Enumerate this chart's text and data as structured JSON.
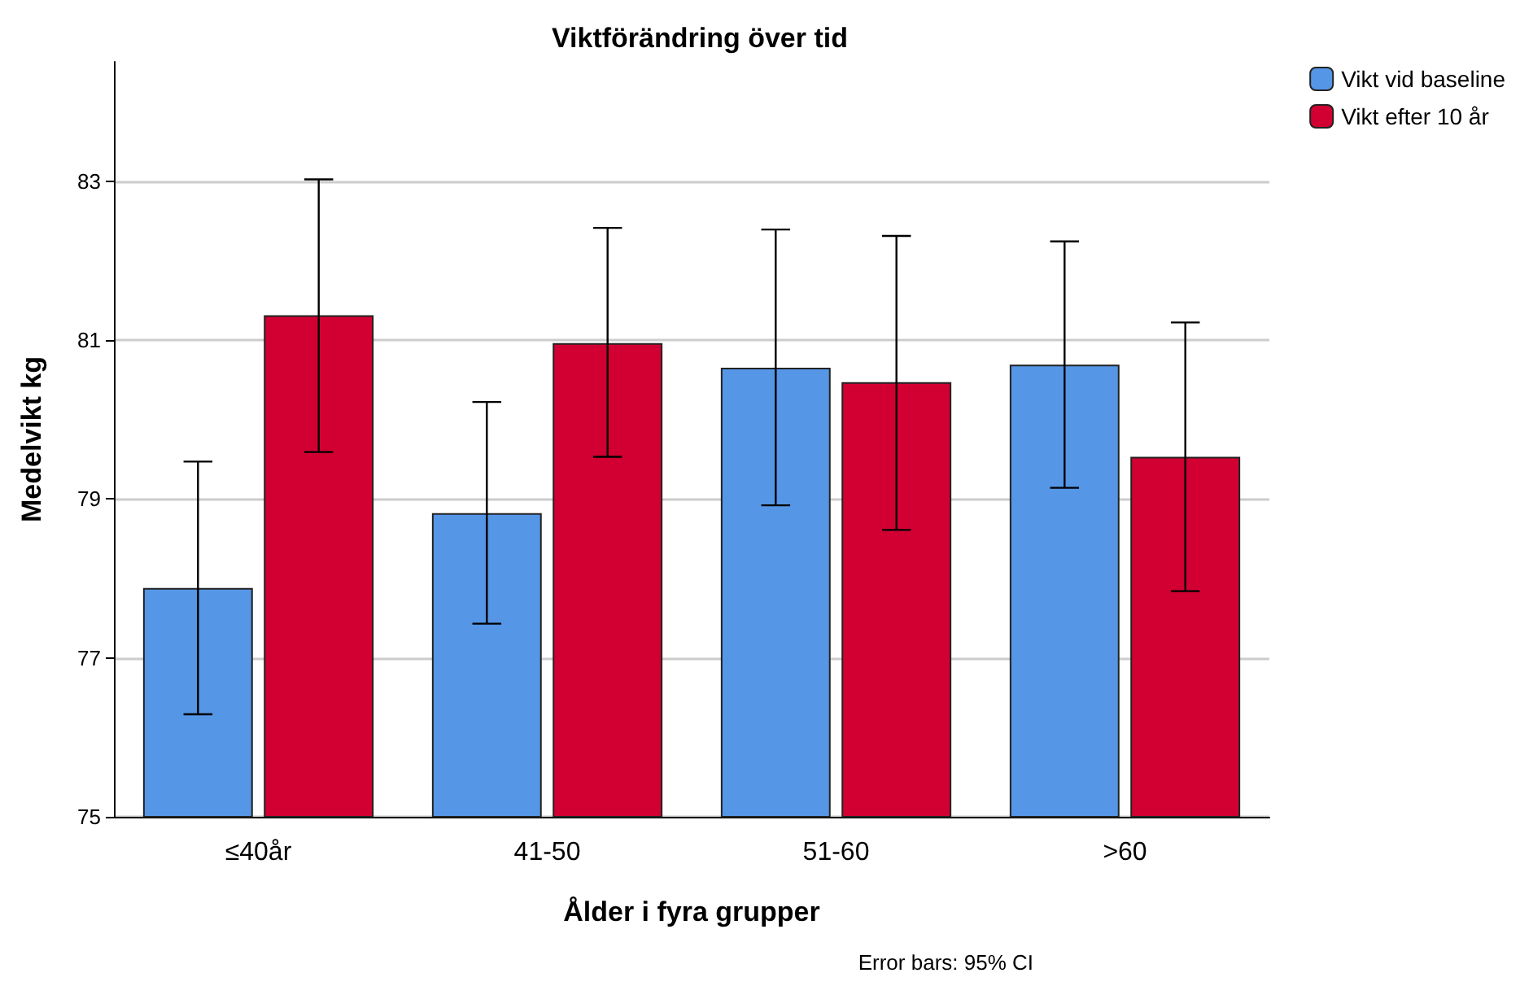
{
  "chart_data": {
    "type": "bar",
    "title": "Viktförändring över tid",
    "xlabel": "Ålder i fyra grupper",
    "ylabel": "Medelvikt kg",
    "categories": [
      "≤40år",
      "41-50",
      "51-60",
      ">60"
    ],
    "series": [
      {
        "name": "Vikt vid baseline",
        "color": "#5596e6",
        "values": [
          77.88,
          78.82,
          80.65,
          80.69
        ],
        "errors": [
          [
            76.29,
            79.47
          ],
          [
            77.43,
            80.22
          ],
          [
            78.92,
            82.39
          ],
          [
            79.14,
            82.24
          ]
        ]
      },
      {
        "name": "Vikt efter 10 år",
        "color": "#d20032",
        "values": [
          81.31,
          80.96,
          80.47,
          79.53
        ],
        "errors": [
          [
            79.59,
            83.02
          ],
          [
            79.53,
            82.41
          ],
          [
            78.61,
            82.31
          ],
          [
            77.84,
            81.22
          ]
        ]
      }
    ],
    "ylim": [
      75,
      84.5
    ],
    "yticks": [
      75,
      77,
      79,
      81,
      83
    ],
    "grid": "y",
    "legend": "top right",
    "annotations": [
      "Error bars: 95% CI"
    ]
  }
}
